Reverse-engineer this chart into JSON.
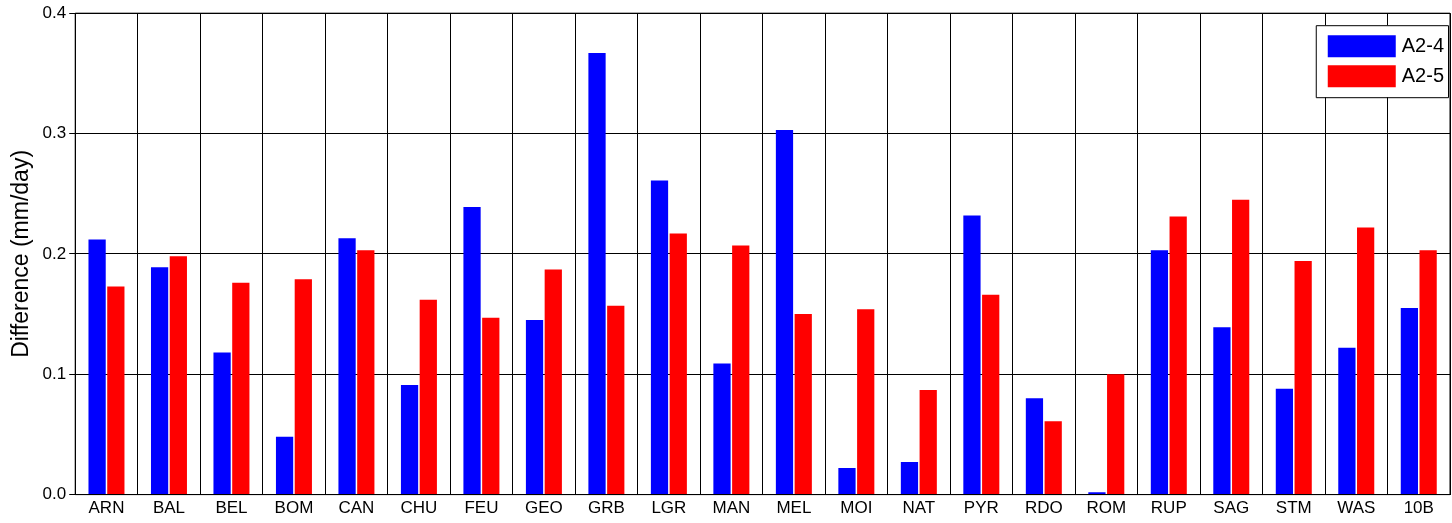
{
  "chart_data": {
    "type": "bar",
    "ylabel": "Difference (mm/day)",
    "categories": [
      "ARN",
      "BAL",
      "BEL",
      "BOM",
      "CAN",
      "CHU",
      "FEU",
      "GEO",
      "GRB",
      "LGR",
      "MAN",
      "MEL",
      "MOI",
      "NAT",
      "PYR",
      "RDO",
      "ROM",
      "RUP",
      "SAG",
      "STM",
      "WAS",
      "10B"
    ],
    "series": [
      {
        "name": "A2-4",
        "color": "#0000ff",
        "values": [
          0.212,
          0.189,
          0.118,
          0.048,
          0.213,
          0.091,
          0.239,
          0.145,
          0.367,
          0.261,
          0.109,
          0.303,
          0.022,
          0.027,
          0.232,
          0.08,
          0.002,
          0.203,
          0.139,
          0.088,
          0.122,
          0.155
        ]
      },
      {
        "name": "A2-5",
        "color": "#ff0000",
        "values": [
          0.173,
          0.198,
          0.176,
          0.179,
          0.203,
          0.162,
          0.147,
          0.187,
          0.157,
          0.217,
          0.207,
          0.15,
          0.154,
          0.087,
          0.166,
          0.061,
          0.1,
          0.231,
          0.245,
          0.194,
          0.222,
          0.203
        ]
      }
    ],
    "ylim": [
      0,
      0.4
    ],
    "yticks": [
      {
        "value": 0,
        "label": "0.0"
      },
      0.1,
      0.2,
      0.3,
      0.4
    ],
    "grid": true,
    "legend": "top right"
  }
}
